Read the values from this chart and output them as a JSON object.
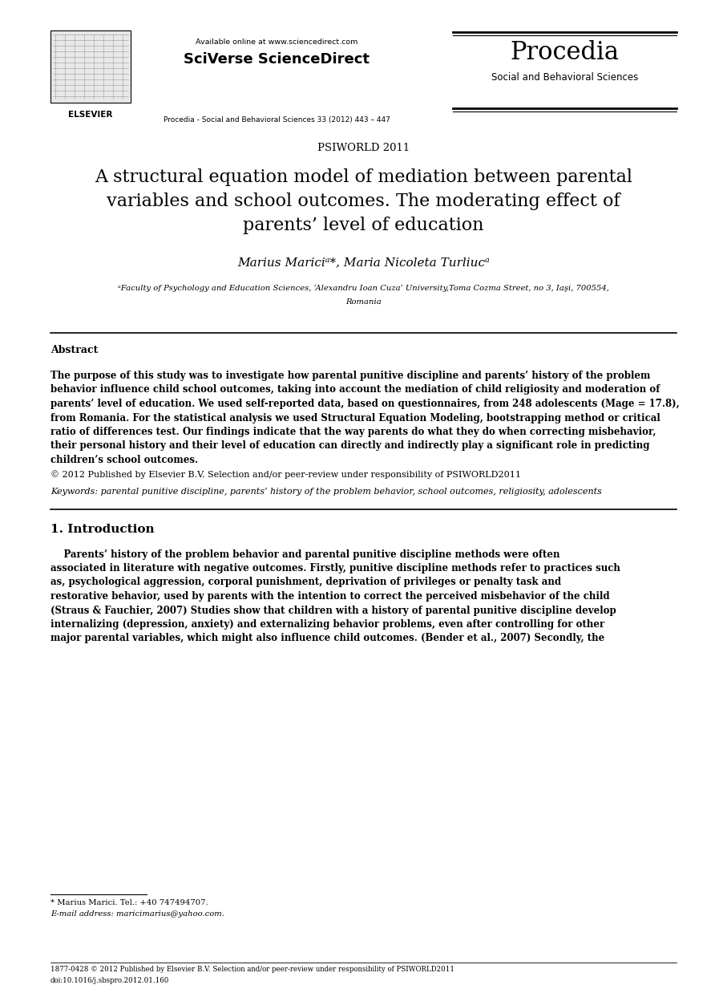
{
  "background_color": "#ffffff",
  "page_width": 9.07,
  "page_height": 12.38,
  "header": {
    "available_online_text": "Available online at www.sciencedirect.com",
    "sciverse_text": "SciVerse ScienceDirect",
    "procedia_text": "Procedia",
    "social_behavioral_text": "Social and Behavioral Sciences",
    "journal_info": "Procedia - Social and Behavioral Sciences 33 (2012) 443 – 447",
    "elsevier_label": "ELSEVIER"
  },
  "conference": "PSIWORLD 2011",
  "title_line1": "A structural equation model of mediation between parental",
  "title_line2": "variables and school outcomes. The moderating effect of",
  "title_line3": "parents’ level of education",
  "authors": "Marius Mariciᵃ*, Maria Nicoleta Turliucᵃ",
  "affiliation_line1": "ᵃFaculty of Psychology and Education Sciences, ‘Alexandru Ioan Cuza’ University,Toma Cozma Street, no 3, Iaşi, 700554,",
  "affiliation_line2": "Romania",
  "abstract_title": "Abstract",
  "copyright_text": "© 2012 Published by Elsevier B.V. Selection and/or peer-review under responsibility of PSIWORLD2011",
  "keywords_label": "Keywords:",
  "keywords_text": " parental punitive discipline, parents’ history of the problem behavior, school outcomes, religiosity, adolescents",
  "section1_title": "1. Introduction",
  "footnote_star": "* Marius Marici. Tel.: +40 747494707.",
  "footnote_email": "E-mail address: maricimarius@yahoo.com.",
  "bottom_text": "1877-0428 © 2012 Published by Elsevier B.V. Selection and/or peer-review under responsibility of PSIWORLD2011",
  "bottom_doi": "doi:10.1016/j.sbspro.2012.01.160",
  "abstract_lines": [
    "The purpose of this study was to investigate how parental punitive discipline and parents’ history of the problem",
    "behavior influence child school outcomes, taking into account the mediation of child religiosity and moderation of",
    "parents’ level of education. We used self-reported data, based on questionnaires, from 248 adolescents (Mage = 17.8),",
    "from Romania. For the statistical analysis we used Structural Equation Modeling, bootstrapping method or critical",
    "ratio of differences test. Our findings indicate that the way parents do what they do when correcting misbehavior,",
    "their personal history and their level of education can directly and indirectly play a significant role in predicting",
    "children’s school outcomes."
  ],
  "intro_lines": [
    "    Parents’ history of the problem behavior and parental punitive discipline methods were often",
    "associated in literature with negative outcomes. Firstly, punitive discipline methods refer to practices such",
    "as, psychological aggression, corporal punishment, deprivation of privileges or penalty task and",
    "restorative behavior, used by parents with the intention to correct the perceived misbehavior of the child",
    "(Straus & Fauchier, 2007) Studies show that children with a history of parental punitive discipline develop",
    "internalizing (depression, anxiety) and externalizing behavior problems, even after controlling for other",
    "major parental variables, which might also influence child outcomes. (Bender et al., 2007) Secondly, the"
  ]
}
